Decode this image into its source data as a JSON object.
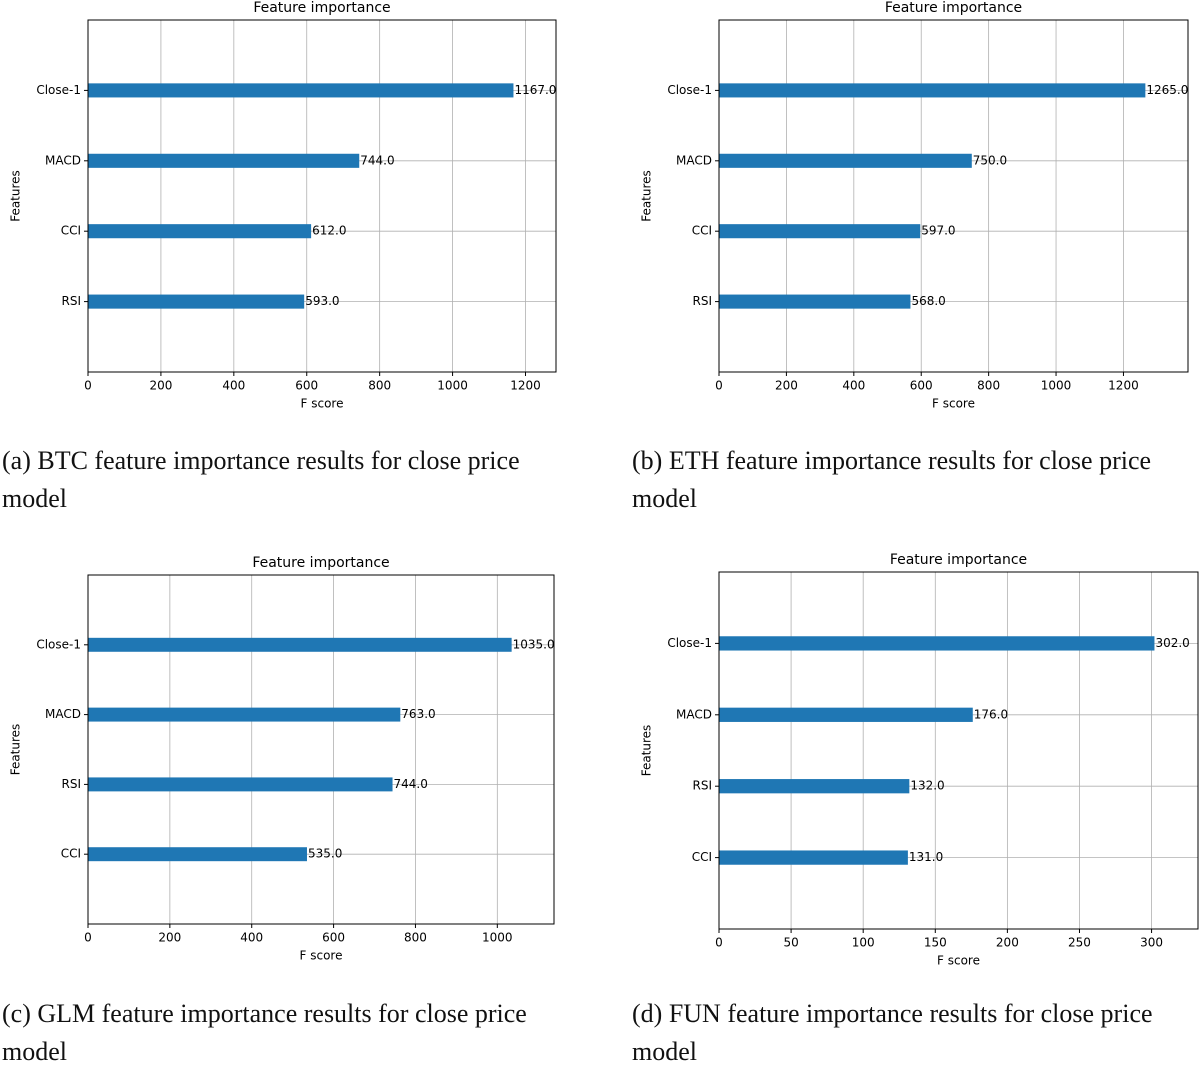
{
  "chart_data": [
    {
      "type": "barh",
      "title": "Feature importance",
      "xlabel": "F score",
      "ylabel": "Features",
      "categories": [
        "Close-1",
        "MACD",
        "CCI",
        "RSI"
      ],
      "values": [
        1167,
        744,
        612,
        593
      ],
      "value_labels": [
        "1167.0",
        "744.0",
        "612.0",
        "593.0"
      ],
      "color": "#1f77b4",
      "xlim": [
        0,
        1283.7
      ],
      "xticks": [
        0,
        200,
        400,
        600,
        800,
        1000,
        1200
      ],
      "grid": true,
      "caption": "(a) BTC feature importance results for close price model"
    },
    {
      "type": "barh",
      "title": "Feature importance",
      "xlabel": "F score",
      "ylabel": "Features",
      "categories": [
        "Close-1",
        "MACD",
        "CCI",
        "RSI"
      ],
      "values": [
        1265,
        750,
        597,
        568
      ],
      "value_labels": [
        "1265.0",
        "750.0",
        "597.0",
        "568.0"
      ],
      "color": "#1f77b4",
      "xlim": [
        0,
        1391.5
      ],
      "xticks": [
        0,
        200,
        400,
        600,
        800,
        1000,
        1200
      ],
      "grid": true,
      "caption": "(b) ETH feature importance results for close price model"
    },
    {
      "type": "barh",
      "title": "Feature importance",
      "xlabel": "F score",
      "ylabel": "Features",
      "categories": [
        "Close-1",
        "MACD",
        "RSI",
        "CCI"
      ],
      "values": [
        1035,
        763,
        744,
        535
      ],
      "value_labels": [
        "1035.0",
        "763.0",
        "744.0",
        "535.0"
      ],
      "color": "#1f77b4",
      "xlim": [
        0,
        1138.5
      ],
      "xticks": [
        0,
        200,
        400,
        600,
        800,
        1000
      ],
      "grid": true,
      "caption": "(c) GLM feature importance results for close price model"
    },
    {
      "type": "barh",
      "title": "Feature importance",
      "xlabel": "F score",
      "ylabel": "Features",
      "categories": [
        "Close-1",
        "MACD",
        "RSI",
        "CCI"
      ],
      "values": [
        302,
        176,
        132,
        131
      ],
      "value_labels": [
        "302.0",
        "176.0",
        "132.0",
        "131.0"
      ],
      "color": "#1f77b4",
      "xlim": [
        0,
        332.2
      ],
      "xticks": [
        0,
        50,
        100,
        150,
        200,
        250,
        300
      ],
      "grid": true,
      "caption": "(d) FUN feature importance results for close price model"
    }
  ]
}
